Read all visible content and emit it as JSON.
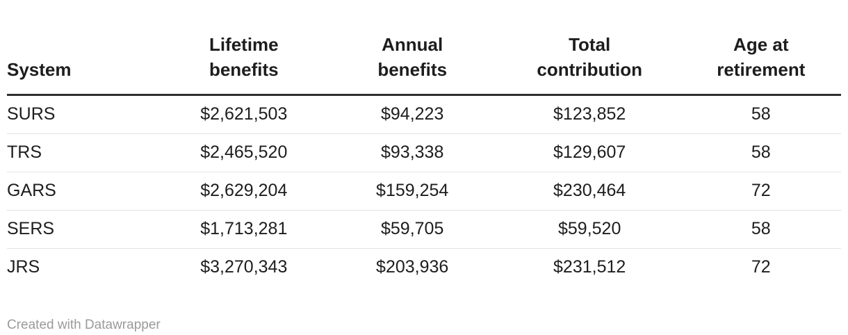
{
  "chart_data": {
    "type": "table",
    "title": "",
    "columns": [
      "System",
      "Lifetime benefits",
      "Annual benefits",
      "Total contribution",
      "Age at retirement"
    ],
    "rows": [
      [
        "SURS",
        "$2,621,503",
        "$94,223",
        "$123,852",
        "58"
      ],
      [
        "TRS",
        "$2,465,520",
        "$93,338",
        "$129,607",
        "58"
      ],
      [
        "GARS",
        "$2,629,204",
        "$159,254",
        "$230,464",
        "72"
      ],
      [
        "SERS",
        "$1,713,281",
        "$59,705",
        "$59,520",
        "58"
      ],
      [
        "JRS",
        "$3,270,343",
        "$203,936",
        "$231,512",
        "72"
      ]
    ],
    "layout": {
      "first_column_align": "left",
      "other_columns_align": "center",
      "header_rule": "thick-dark",
      "row_rule": "thin-light-gray"
    }
  },
  "table": {
    "headers": [
      {
        "line1": "System",
        "line2": ""
      },
      {
        "line1": "Lifetime",
        "line2": "benefits"
      },
      {
        "line1": "Annual",
        "line2": "benefits"
      },
      {
        "line1": "Total",
        "line2": "contribution"
      },
      {
        "line1": "Age at",
        "line2": "retirement"
      }
    ]
  },
  "footer": {
    "attribution": "Created with Datawrapper"
  },
  "colors": {
    "background": "#ffffff",
    "text": "#1d1d1d",
    "header_border": "#2e2e2e",
    "row_border": "#e3e3e3",
    "attribution_text": "#9a9a9a"
  }
}
